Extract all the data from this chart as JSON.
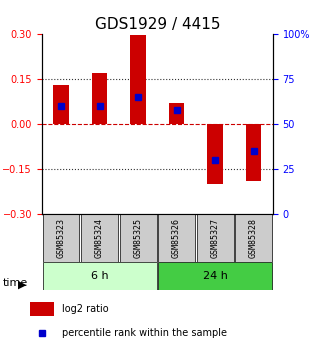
{
  "title": "GDS1929 / 4415",
  "samples": [
    "GSM85323",
    "GSM85324",
    "GSM85325",
    "GSM85326",
    "GSM85327",
    "GSM85328"
  ],
  "log2_values": [
    0.13,
    0.17,
    0.3,
    0.07,
    -0.2,
    -0.19
  ],
  "percentile_values": [
    60,
    60,
    65,
    58,
    30,
    35
  ],
  "ylim": [
    -0.3,
    0.3
  ],
  "yticks_left": [
    -0.3,
    -0.15,
    0,
    0.15,
    0.3
  ],
  "yticks_right": [
    0,
    25,
    50,
    75,
    100
  ],
  "group1_label": "6 h",
  "group2_label": "24 h",
  "group1_indices": [
    0,
    1,
    2
  ],
  "group2_indices": [
    3,
    4,
    5
  ],
  "bar_color": "#cc0000",
  "percentile_color": "#0000cc",
  "group1_color_light": "#ccffcc",
  "group2_color_medium": "#44cc44",
  "sample_box_color": "#cccccc",
  "zero_line_color": "#cc0000",
  "dotted_line_color": "#333333",
  "title_fontsize": 11,
  "tick_fontsize": 7,
  "label_fontsize": 7,
  "sample_fontsize": 6,
  "bar_width": 0.4
}
